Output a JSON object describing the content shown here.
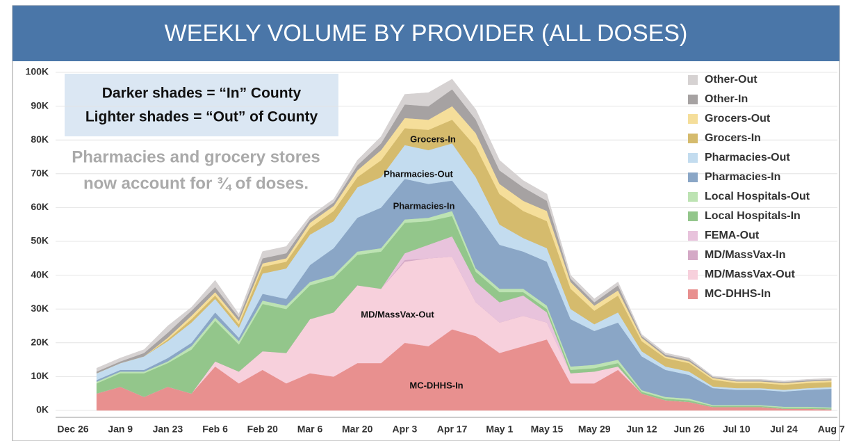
{
  "chart_data": {
    "type": "stacked_area",
    "title": "WEEKLY VOLUME BY PROVIDER (ALL DOSES)",
    "notes": [
      "Darker shades = “In” County",
      "Lighter shades = “Out” of County"
    ],
    "subtitle": [
      "Pharmacies and grocery stores",
      "now account for ¾ of doses."
    ],
    "annotations": [
      "Grocers-In",
      "Pharmacies-Out",
      "Pharmacies-In",
      "MD/MassVax-Out",
      "MC-DHHS-In"
    ],
    "categories": [
      "Dec 26",
      null,
      "Jan 9",
      null,
      "Jan 23",
      null,
      "Feb 6",
      null,
      "Feb 20",
      null,
      "Mar 6",
      null,
      "Mar 20",
      null,
      "Apr 3",
      null,
      "Apr 17",
      null,
      "May 1",
      null,
      "May 15",
      null,
      "May 29",
      null,
      "Jun 12",
      null,
      "Jun 26",
      null,
      "Jul 10",
      null,
      "Jul 24",
      null,
      "Aug 7"
    ],
    "ylim": [
      0,
      100000
    ],
    "yticks": [
      {
        "value": 0,
        "label": "0K"
      },
      {
        "value": 10000,
        "label": "10K"
      },
      {
        "value": 20000,
        "label": "20K"
      },
      {
        "value": 30000,
        "label": "30K"
      },
      {
        "value": 40000,
        "label": "40K"
      },
      {
        "value": 50000,
        "label": "50K"
      },
      {
        "value": 60000,
        "label": "60K"
      },
      {
        "value": 70000,
        "label": "70K"
      },
      {
        "value": 80000,
        "label": "80K"
      },
      {
        "value": 90000,
        "label": "90K"
      },
      {
        "value": 100000,
        "label": "100K"
      }
    ],
    "grid": true,
    "legend": "right",
    "series": [
      {
        "name": "MC-DHHS-In",
        "color": "#e8908f",
        "values": [
          null,
          5000,
          7000,
          4000,
          7000,
          5000,
          13000,
          8000,
          12000,
          8000,
          11000,
          10000,
          14000,
          14000,
          20000,
          19000,
          24000,
          22000,
          17000,
          19000,
          21000,
          8000,
          8000,
          12000,
          5000,
          3000,
          2500,
          1000,
          1000,
          1000,
          500,
          500,
          300
        ]
      },
      {
        "name": "MD/MassVax-Out",
        "color": "#f7d0dc",
        "values": [
          null,
          0,
          0,
          0,
          0,
          0,
          1500,
          3500,
          5500,
          9000,
          16000,
          19000,
          23000,
          22000,
          24000,
          26000,
          21500,
          10000,
          9000,
          9000,
          5000,
          3000,
          3500,
          1000,
          0,
          0,
          0,
          0,
          0,
          0,
          0,
          0,
          0
        ]
      },
      {
        "name": "MD/MassVax-In",
        "color": "#d4a9c6",
        "values": [
          null,
          0,
          0,
          0,
          0,
          0,
          0,
          0,
          0,
          0,
          0,
          0,
          0,
          0,
          500,
          0,
          0,
          0,
          0,
          0,
          0,
          0,
          0,
          0,
          0,
          0,
          0,
          0,
          0,
          0,
          0,
          0,
          0
        ]
      },
      {
        "name": "FEMA-Out",
        "color": "#e8c3dc",
        "values": [
          null,
          0,
          0,
          0,
          0,
          0,
          0,
          0,
          0,
          0,
          0,
          0,
          0,
          0,
          2000,
          4000,
          6000,
          6000,
          6000,
          6000,
          3000,
          0,
          0,
          0,
          0,
          0,
          0,
          0,
          0,
          0,
          0,
          0,
          0
        ]
      },
      {
        "name": "Local Hospitals-In",
        "color": "#93c68b",
        "values": [
          null,
          3000,
          4000,
          7000,
          7000,
          13000,
          12000,
          8000,
          14000,
          13000,
          10000,
          10000,
          9000,
          11000,
          9000,
          7000,
          6000,
          3000,
          3000,
          1000,
          1000,
          1000,
          1000,
          1000,
          500,
          500,
          500,
          300,
          300,
          300,
          300,
          300,
          300
        ]
      },
      {
        "name": "Local Hospitals-Out",
        "color": "#bde3b3",
        "values": [
          null,
          500,
          500,
          500,
          500,
          1000,
          1000,
          1000,
          1000,
          1000,
          1000,
          1000,
          1000,
          1000,
          1000,
          1000,
          1500,
          1000,
          1000,
          1000,
          1000,
          1000,
          1000,
          1000,
          500,
          500,
          500,
          300,
          300,
          300,
          300,
          300,
          300
        ]
      },
      {
        "name": "Pharmacies-In",
        "color": "#8aa6c6",
        "values": [
          null,
          500,
          500,
          500,
          1000,
          1000,
          1500,
          1000,
          2000,
          2000,
          5000,
          8000,
          10000,
          12000,
          12000,
          10000,
          9000,
          17000,
          13000,
          11000,
          13000,
          14000,
          10000,
          11000,
          10000,
          8000,
          7000,
          5000,
          4500,
          4500,
          4500,
          5000,
          5500
        ]
      },
      {
        "name": "Pharmacies-Out",
        "color": "#c3dcef",
        "values": [
          null,
          2000,
          2000,
          4000,
          5000,
          6000,
          4000,
          3000,
          6000,
          9000,
          9000,
          8000,
          9000,
          9000,
          10000,
          10000,
          11000,
          10000,
          6000,
          4000,
          4000,
          3000,
          2000,
          3000,
          1500,
          1000,
          1000,
          500,
          500,
          500,
          500,
          500,
          500
        ]
      },
      {
        "name": "Grocers-In",
        "color": "#d5bb6d",
        "values": [
          null,
          0,
          0,
          0,
          500,
          1000,
          1000,
          1000,
          2000,
          2000,
          2000,
          3000,
          3000,
          5000,
          5000,
          6000,
          7000,
          9000,
          9000,
          8000,
          8000,
          6000,
          4000,
          5000,
          3000,
          2500,
          2500,
          2000,
          1500,
          1500,
          1500,
          1500,
          1500
        ]
      },
      {
        "name": "Grocers-Out",
        "color": "#f5de9a",
        "values": [
          null,
          0,
          0,
          0,
          500,
          1000,
          1000,
          1000,
          1000,
          1000,
          1500,
          1500,
          2000,
          3000,
          3000,
          3000,
          4000,
          4000,
          3000,
          3000,
          3000,
          2000,
          1500,
          1500,
          1000,
          500,
          500,
          500,
          500,
          500,
          500,
          500,
          500
        ]
      },
      {
        "name": "Other-In",
        "color": "#a6a2a2",
        "values": [
          null,
          500,
          500,
          1000,
          1500,
          1500,
          1500,
          1000,
          1500,
          1500,
          1000,
          1000,
          1500,
          2000,
          4000,
          4000,
          5000,
          4000,
          4000,
          4000,
          3000,
          1000,
          1000,
          1500,
          500,
          500,
          500,
          300,
          300,
          300,
          300,
          300,
          300
        ]
      },
      {
        "name": "Other-Out",
        "color": "#d6d2d2",
        "values": [
          null,
          1000,
          1000,
          1000,
          2000,
          1000,
          2000,
          1000,
          2000,
          2000,
          1000,
          1000,
          1500,
          2000,
          3000,
          4000,
          3000,
          3000,
          3000,
          2000,
          2000,
          1000,
          1000,
          1000,
          500,
          500,
          500,
          300,
          300,
          300,
          300,
          300,
          300
        ]
      }
    ]
  }
}
